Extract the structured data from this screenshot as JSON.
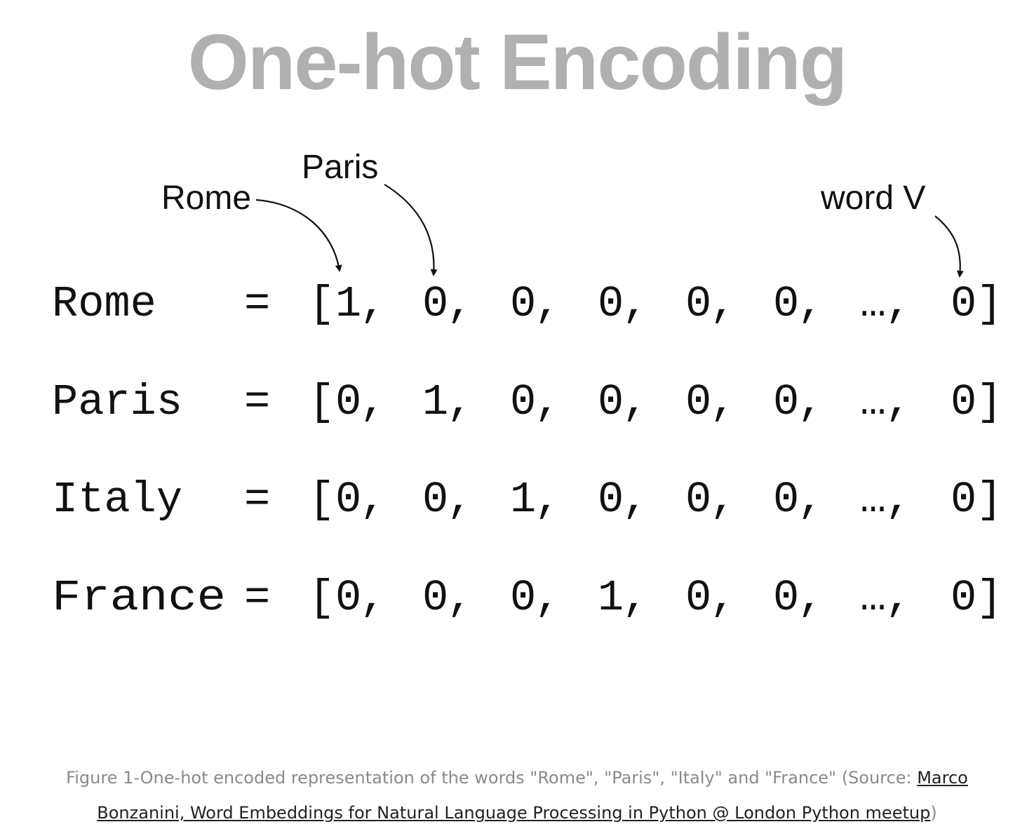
{
  "title": "One-hot Encoding",
  "annotations": [
    {
      "label": "Rome",
      "column": 0
    },
    {
      "label": "Paris",
      "column": 1
    },
    {
      "label": "word V",
      "column": 7
    }
  ],
  "rows": [
    {
      "word": "Rome",
      "values": [
        "1",
        "0",
        "0",
        "0",
        "0",
        "0",
        "…",
        "0"
      ]
    },
    {
      "word": "Paris",
      "values": [
        "0",
        "1",
        "0",
        "0",
        "0",
        "0",
        "…",
        "0"
      ]
    },
    {
      "word": "Italy",
      "values": [
        "0",
        "0",
        "1",
        "0",
        "0",
        "0",
        "…",
        "0"
      ]
    },
    {
      "word": "France",
      "values": [
        "0",
        "0",
        "0",
        "1",
        "0",
        "0",
        "…",
        "0"
      ]
    }
  ],
  "caption": {
    "text": "Figure 1-One-hot encoded representation of the words \"Rome\", \"Paris\", \"Italy\" and \"France\" (Source: ",
    "link_text": "Marco Bonzanini, Word Embeddings for Natural Language Processing in Python @ London Python meetup",
    "suffix": ")"
  }
}
